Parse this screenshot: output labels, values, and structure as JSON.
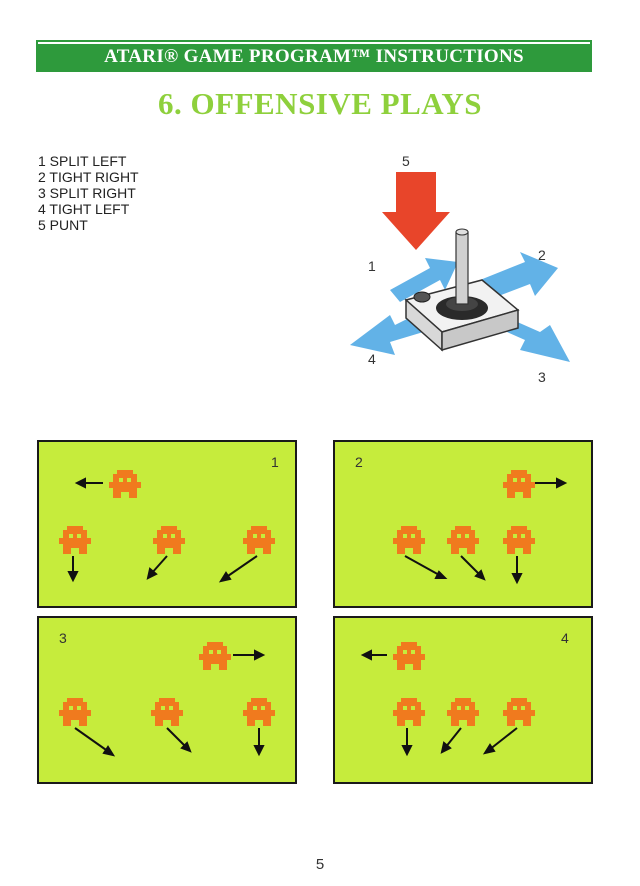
{
  "header": {
    "text": "ATARI® GAME PROGRAM™ INSTRUCTIONS"
  },
  "title": "6.  OFFENSIVE PLAYS",
  "plays": [
    "1 SPLIT LEFT",
    "2 TIGHT RIGHT",
    "3 SPLIT RIGHT",
    "4 TIGHT LEFT",
    "5 PUNT"
  ],
  "joystick": {
    "labels": [
      "1",
      "2",
      "3",
      "4",
      "5"
    ],
    "colors": {
      "punt_arrow": "#e8452a",
      "direction_arrows": "#5aaee6",
      "base": "#e8e8e8"
    }
  },
  "panels": [
    {
      "number": "1"
    },
    {
      "number": "2"
    },
    {
      "number": "3"
    },
    {
      "number": "4"
    }
  ],
  "colors": {
    "field": "#c6ec3c",
    "player": "#f07a1e",
    "title": "#8ed03c",
    "header": "#2e9a3c"
  },
  "page_number": "5"
}
